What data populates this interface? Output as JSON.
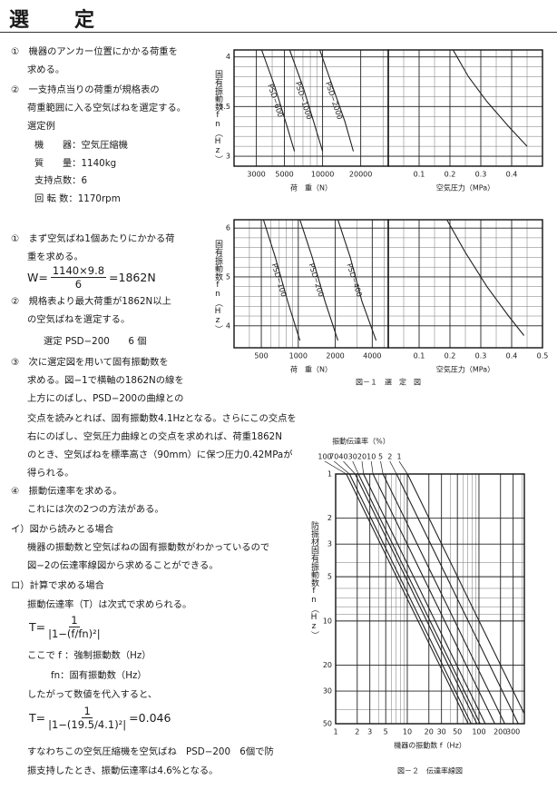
{
  "header": {
    "title": "選　　定"
  },
  "left_column": {
    "lines": [
      "①　機器のアンカー位置にかかる荷重を",
      "求める。",
      "②　一支持点当りの荷重が規格表の",
      "荷重範囲に入る空気ばねを選定する。",
      "選定例",
      "機　　器：空気圧縮機",
      "質　　量：1140kg",
      "支持点数：6",
      "回 転 数：1170rpm",
      "①　まず空気ばね1個あたりにかかる荷",
      "重を求める。",
      "②　規格表より最大荷重が1862N以上",
      "の空気ばねを選定する。",
      "選定 PSD−200　　6 個",
      "③　次に選定図を用いて固有振動数を",
      "求める。図−1で横軸の1862Nの線を",
      "上方にのばし、PSD−200の曲線との",
      "交点を読みとれば、固有振動数4.1Hzとなる。さらにこの交点を",
      "右にのばし、空気圧力曲線との交点を求めれば、荷重1862N",
      "のとき、空気ばねを標準高さ（90mm）に保つ圧力0.42MPaが",
      "得られる。",
      "④　振動伝達率を求める。",
      "これには次の2つの方法がある。",
      "イ）図から読みとる場合",
      "機器の振動数と空気ばねの固有振動数がわかっているので",
      "図−2の伝達率線図から求めることができる。",
      "ロ）計算で求める場合",
      "振動伝達率（T）は次式で求められる。",
      "ここで f ：強制振動数（Hz）",
      "fn：固有振動数（Hz）",
      "したがって数値を代入すると、",
      "すなわちこの空気圧縮機を空気ばね　PSD−200　6個で防",
      "振支持したとき、振動伝達率は4.6%となる。"
    ],
    "formulas": [
      {
        "lhs": "W=",
        "numerator": "1140×9.8",
        "denominator": "6",
        "rhs": "=1862N"
      },
      {
        "lhs": "T=",
        "numerator": "1",
        "denominator": "|1−(f/fn)²|"
      },
      {
        "lhs": "T=",
        "numerator": "1",
        "denominator": "|1−(19.5/4.1)²|",
        "rhs": "=0.046"
      }
    ]
  },
  "chart_data": [
    {
      "type": "line",
      "x_label": "荷　重（N）",
      "y_label": "固有振動数fn（Hz）",
      "xscale": "log",
      "xlim": [
        2000,
        33000
      ],
      "xticks": [
        3000,
        5000,
        10000,
        20000
      ],
      "minor_xticks": [
        4000,
        6000,
        7000,
        8000,
        9000,
        30000
      ],
      "ylim": [
        2.9,
        4.07
      ],
      "yticks": [
        3,
        3.5,
        4
      ],
      "minor_yticks": [
        3.1,
        3.2,
        3.3,
        3.4,
        3.6,
        3.7,
        3.8,
        3.9
      ],
      "show_ytick_labels": true,
      "label_style": "inline",
      "series": [
        {
          "name": "PSD−600",
          "color": "#222222",
          "x": [
            3300,
            4200,
            5100,
            6000
          ],
          "values": [
            4.07,
            3.7,
            3.35,
            3.05
          ]
        },
        {
          "name": "PSD−1000",
          "color": "#222222",
          "x": [
            5500,
            7000,
            8500,
            10000
          ],
          "values": [
            4.07,
            3.7,
            3.35,
            3.05
          ]
        },
        {
          "name": "PSD−2000",
          "color": "#222222",
          "x": [
            9500,
            12000,
            15000,
            17500
          ],
          "values": [
            4.07,
            3.7,
            3.35,
            3.05
          ]
        }
      ]
    },
    {
      "type": "line",
      "x_label": "空気圧力（MPa）",
      "xscale": "linear",
      "xlim": [
        0,
        0.5
      ],
      "xticks": [
        0.1,
        0.2,
        0.3,
        0.4
      ],
      "minor_xticks": [
        0.05,
        0.15,
        0.25,
        0.35,
        0.45
      ],
      "ylim": [
        2.9,
        4.07
      ],
      "yticks": [
        3,
        3.5,
        4
      ],
      "minor_yticks": [
        3.1,
        3.2,
        3.3,
        3.4,
        3.6,
        3.7,
        3.8,
        3.9
      ],
      "show_ytick_labels": false,
      "label_style": "inline",
      "series": [
        {
          "color": "#222222",
          "x": [
            0.21,
            0.26,
            0.32,
            0.39,
            0.45
          ],
          "values": [
            4.07,
            3.8,
            3.55,
            3.3,
            3.1
          ]
        }
      ]
    },
    {
      "type": "line",
      "x_label": "荷　重（N）",
      "y_label": "固有振動数fn（Hz）",
      "xscale": "log",
      "xlim": [
        300,
        5400
      ],
      "xticks": [
        500,
        1000,
        2000,
        4000
      ],
      "minor_xticks": [
        400,
        600,
        700,
        800,
        900,
        3000,
        5000
      ],
      "ylim": [
        3.55,
        6.17
      ],
      "yticks": [
        4,
        5,
        6
      ],
      "minor_yticks": [
        4.2,
        4.4,
        4.6,
        4.8,
        5.2,
        5.4,
        5.6,
        5.8
      ],
      "show_ytick_labels": true,
      "label_style": "inline",
      "series": [
        {
          "name": "PSD−100",
          "color": "#222222",
          "x": [
            520,
            650,
            820,
            1030
          ],
          "values": [
            6.17,
            5.4,
            4.5,
            3.7
          ]
        },
        {
          "name": "PSD−200",
          "color": "#222222",
          "x": [
            1030,
            1300,
            1650,
            2100
          ],
          "values": [
            6.17,
            5.4,
            4.5,
            3.7
          ]
        },
        {
          "name": "PSD−400",
          "color": "#222222",
          "x": [
            2100,
            2650,
            3300,
            4300
          ],
          "values": [
            6.17,
            5.4,
            4.5,
            3.7
          ]
        }
      ]
    },
    {
      "type": "line",
      "x_label": "空気圧力（MPa）",
      "caption": "図－１　選　定　図",
      "xscale": "linear",
      "xlim": [
        0,
        0.5
      ],
      "xticks": [
        0.1,
        0.2,
        0.3,
        0.4,
        0.5
      ],
      "minor_xticks": [
        0.05,
        0.15,
        0.25,
        0.35,
        0.45
      ],
      "ylim": [
        3.55,
        6.17
      ],
      "yticks": [
        4,
        5,
        6
      ],
      "minor_yticks": [
        4.2,
        4.4,
        4.6,
        4.8,
        5.2,
        5.4,
        5.6,
        5.8
      ],
      "show_ytick_labels": false,
      "label_style": "inline",
      "series": [
        {
          "color": "#222222",
          "x": [
            0.19,
            0.25,
            0.32,
            0.39,
            0.44
          ],
          "values": [
            6.17,
            5.5,
            4.8,
            4.2,
            3.8
          ]
        }
      ]
    },
    {
      "type": "line",
      "title": "振動伝達率（%）",
      "x_label": "機器の振動数 f（Hz）",
      "y_label": "防振材固有振動数fn（Hz）",
      "caption": "図－２　伝達率線図",
      "xscale": "log",
      "yscale": "log",
      "y_inverted": true,
      "xlim": [
        1,
        430
      ],
      "xticks": [
        1,
        2,
        3,
        5,
        10,
        20,
        30,
        50,
        100,
        200,
        300
      ],
      "minor_xticks": [
        4,
        6,
        7,
        8,
        9,
        40,
        60,
        70,
        80,
        90,
        400
      ],
      "ylim": [
        1,
        50
      ],
      "yticks": [
        1,
        2,
        3,
        5,
        10,
        20,
        30,
        50
      ],
      "minor_yticks": [
        4,
        6,
        7,
        8,
        9,
        40
      ],
      "show_ytick_labels": true,
      "label_style": "top",
      "series": [
        {
          "name": "100",
          "color": "#222222",
          "x": [
            1.41,
            70.7
          ],
          "values": [
            1,
            50
          ]
        },
        {
          "name": "70",
          "color": "#222222",
          "x": [
            1.56,
            78
          ],
          "values": [
            1,
            50
          ]
        },
        {
          "name": "40",
          "color": "#222222",
          "x": [
            1.87,
            93.5
          ],
          "values": [
            1,
            50
          ]
        },
        {
          "name": "30",
          "color": "#222222",
          "x": [
            2.08,
            104
          ],
          "values": [
            1,
            50
          ]
        },
        {
          "name": "20",
          "color": "#222222",
          "x": [
            2.45,
            122.5
          ],
          "values": [
            1,
            50
          ]
        },
        {
          "name": "10",
          "color": "#222222",
          "x": [
            3.32,
            166
          ],
          "values": [
            1,
            50
          ]
        },
        {
          "name": "5",
          "color": "#222222",
          "x": [
            4.58,
            229
          ],
          "values": [
            1,
            50
          ]
        },
        {
          "name": "2",
          "color": "#222222",
          "x": [
            7.07,
            354
          ],
          "values": [
            1,
            50
          ]
        },
        {
          "name": "1",
          "color": "#222222",
          "x": [
            10.05,
            502.5
          ],
          "values": [
            1,
            50
          ]
        }
      ]
    }
  ]
}
